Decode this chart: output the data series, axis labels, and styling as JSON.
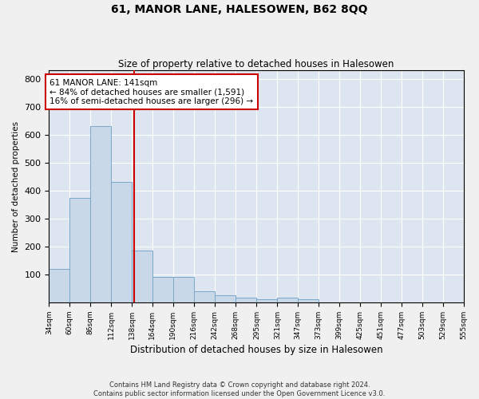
{
  "title": "61, MANOR LANE, HALESOWEN, B62 8QQ",
  "subtitle": "Size of property relative to detached houses in Halesowen",
  "xlabel": "Distribution of detached houses by size in Halesowen",
  "ylabel": "Number of detached properties",
  "bar_color": "#c8d8e8",
  "bar_edge_color": "#7aa8c8",
  "background_color": "#dde6f0",
  "grid_color": "#ffffff",
  "vline_x": 141,
  "vline_color": "#cc0000",
  "annotation_line1": "61 MANOR LANE: 141sqm",
  "annotation_line2": "← 84% of detached houses are smaller (1,591)",
  "annotation_line3": "16% of semi-detached houses are larger (296) →",
  "annotation_box_color": "#ffffff",
  "annotation_box_edge": "#cc0000",
  "bin_edges": [
    34,
    60,
    86,
    112,
    138,
    164,
    190,
    216,
    242,
    268,
    295,
    321,
    347,
    373,
    399,
    425,
    451,
    477,
    503,
    529,
    555
  ],
  "bar_heights": [
    120,
    375,
    630,
    430,
    185,
    90,
    90,
    40,
    25,
    18,
    12,
    18,
    12,
    0,
    0,
    0,
    0,
    0,
    0,
    0
  ],
  "ylim": [
    0,
    830
  ],
  "yticks": [
    100,
    200,
    300,
    400,
    500,
    600,
    700,
    800
  ],
  "footer_line1": "Contains HM Land Registry data © Crown copyright and database right 2024.",
  "footer_line2": "Contains public sector information licensed under the Open Government Licence v3.0."
}
